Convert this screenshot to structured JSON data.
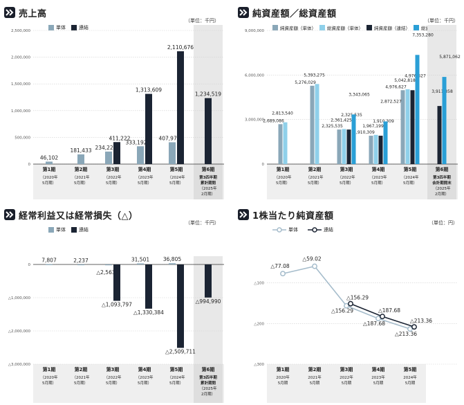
{
  "colors": {
    "single": "#8aa7b8",
    "consol": "#1b2433",
    "light": "#8fd0ea",
    "blue": "#2a9fd6",
    "shade": "#e8e8e8",
    "grid": "#cfcfcf"
  },
  "panels": {
    "sales": {
      "title": "売上高",
      "unit": "（単位：千円）",
      "legend": [
        "単体",
        "連結"
      ]
    },
    "net_assets": {
      "title": "純資産額／総資産額",
      "unit": "（単位：千円）",
      "legend": [
        "純資産額（単体）",
        "総資産額（単体）",
        "純資産額（連結）",
        "総資産額（連結）"
      ]
    },
    "ordinary": {
      "title": "経常利益又は経常損失（△）",
      "unit": "（単位：千円）",
      "legend": [
        "単体",
        "連結"
      ]
    },
    "per_share": {
      "title": "1株当たり純資産額",
      "unit": "（単位：円）",
      "legend": [
        "単体",
        "連結"
      ]
    }
  },
  "chart_data": [
    {
      "type": "bar",
      "title": "売上高",
      "ylim": [
        0,
        2500000
      ],
      "yticks": [
        "0",
        "500,000",
        "1,000,000",
        "1,500,000",
        "2,000,000",
        "2,500,000"
      ],
      "categories": [
        [
          "第1期",
          "（2020年",
          "5月期）"
        ],
        [
          "第2期",
          "（2021年",
          "5月期）"
        ],
        [
          "第3期",
          "（2022年",
          "5月期）"
        ],
        [
          "第4期",
          "（2023年",
          "5月期）"
        ],
        [
          "第5期",
          "（2024年",
          "5月期）"
        ],
        [
          "第6期",
          "第3四半期",
          "累計期間",
          "（2025年",
          "2月期）"
        ]
      ],
      "series": [
        {
          "name": "単体",
          "values": [
            46102,
            181433,
            234228,
            333192,
            407972,
            null
          ],
          "labels": [
            "46,102",
            "181,433",
            "234,228",
            "333,192",
            "407,972",
            ""
          ]
        },
        {
          "name": "連結",
          "values": [
            null,
            null,
            411222,
            1313609,
            2110676,
            1234519
          ],
          "labels": [
            "",
            "",
            "411,222",
            "1,313,609",
            "2,110,676",
            "1,234,519"
          ]
        }
      ]
    },
    {
      "type": "bar",
      "title": "純資産額／総資産額",
      "ylim": [
        0,
        9000000
      ],
      "yticks": [
        "0",
        "3,000,000",
        "6,000,000",
        "9,000,000"
      ],
      "categories": [
        [
          "第1期",
          "（2020年",
          "5月期）"
        ],
        [
          "第2期",
          "（2021年",
          "5月期）"
        ],
        [
          "第3期",
          "（2022年",
          "5月期）"
        ],
        [
          "第4期",
          "（2023年",
          "5月期）"
        ],
        [
          "第5期",
          "（2024年",
          "5月期）"
        ],
        [
          "第6期",
          "第3四半期",
          "会計期間末",
          "（2025年",
          "2月期）"
        ]
      ],
      "series": [
        {
          "name": "純資産額（単体）",
          "values": [
            2689086,
            5276029,
            2325535,
            1910309,
            4976627,
            null
          ],
          "labels": [
            "2,689,086",
            "5,276,029",
            "2,325,535",
            "1,910,309",
            "4,976,627",
            ""
          ]
        },
        {
          "name": "総資産額（単体）",
          "values": [
            2813540,
            5393275,
            2361425,
            1967199,
            5042818,
            null
          ],
          "labels": [
            "2,813,540",
            "5,393,275",
            "2,361,425",
            "1,967,199",
            "5,042,818",
            ""
          ]
        },
        {
          "name": "純資産額（連結）",
          "values": [
            null,
            null,
            2325535,
            1910309,
            4976627,
            3911858
          ],
          "labels": [
            "",
            "",
            "2,325,535",
            "1,910,309",
            "4,976,627",
            "3,911,858"
          ]
        },
        {
          "name": "総資産額（連結）",
          "values": [
            null,
            null,
            3343065,
            2872527,
            7353280,
            5871062
          ],
          "labels": [
            "",
            "",
            "3,343,065",
            "2,872,527",
            "7,353,280",
            "5,871,062"
          ]
        }
      ]
    },
    {
      "type": "bar",
      "title": "経常利益又は経常損失（△）",
      "ylim": [
        -3000000,
        0
      ],
      "yticks": [
        "0",
        "△1,000,000",
        "△2,000,000",
        "△3,000,000"
      ],
      "categories": [
        [
          "第1期",
          "（2020年",
          "5月期）"
        ],
        [
          "第2期",
          "（2021年",
          "5月期）"
        ],
        [
          "第3期",
          "（2022年",
          "5月期）"
        ],
        [
          "第4期",
          "（2023年",
          "5月期）"
        ],
        [
          "第5期",
          "（2024年",
          "5月期）"
        ],
        [
          "第6期",
          "第3四半期",
          "累計期間",
          "（2025年",
          "2月期）"
        ]
      ],
      "series": [
        {
          "name": "単体",
          "values": [
            7807,
            2237,
            -2563,
            31501,
            36805,
            null
          ],
          "labels": [
            "7,807",
            "2,237",
            "△2,563",
            "31,501",
            "36,805",
            ""
          ]
        },
        {
          "name": "連結",
          "values": [
            null,
            null,
            -1093797,
            -1330384,
            -2509711,
            -994990
          ],
          "labels": [
            "",
            "",
            "△1,093,797",
            "△1,330,384",
            "△2,509,711",
            "△994,990"
          ]
        }
      ]
    },
    {
      "type": "line",
      "title": "1株当たり純資産額",
      "ylim": [
        -300,
        0
      ],
      "yticks": [
        "△100",
        "△200",
        "△300"
      ],
      "categories": [
        [
          "第1期",
          "2020年",
          "5月期"
        ],
        [
          "第2期",
          "2021年",
          "5月期"
        ],
        [
          "第3期",
          "2022年",
          "5月期"
        ],
        [
          "第4期",
          "2023年",
          "5月期"
        ],
        [
          "第5期",
          "2024年",
          "5月期"
        ]
      ],
      "series": [
        {
          "name": "単体",
          "values": [
            -77.08,
            -59.02,
            -156.29,
            -187.68,
            -213.36
          ],
          "labels": [
            "△77.08",
            "△59.02",
            "△156.29",
            "△187.68",
            "△213.36"
          ]
        },
        {
          "name": "連結",
          "values": [
            null,
            null,
            -156.29,
            -187.68,
            -213.36
          ],
          "labels": [
            "",
            "",
            "△156.29",
            "△187.68",
            "△213.36"
          ]
        }
      ]
    }
  ]
}
